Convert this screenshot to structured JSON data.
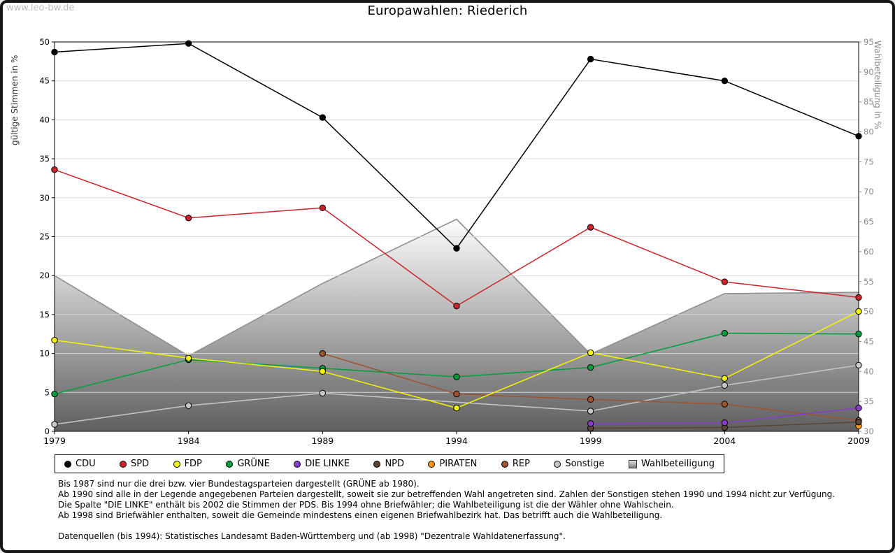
{
  "watermark": "www.leo-bw.de",
  "chart_data": {
    "type": "line",
    "title": "Europawahlen: Riederich",
    "x": [
      "1979",
      "1984",
      "1989",
      "1994",
      "1999",
      "2004",
      "2009"
    ],
    "ylabel_left": "gültige Stimmen in %",
    "ylabel_right": "Wahlbeteiligung in %",
    "ylim_left": [
      0,
      50
    ],
    "ylim_right": [
      30,
      95
    ],
    "yticks_left": [
      0,
      5,
      10,
      15,
      20,
      25,
      30,
      35,
      40,
      45,
      50
    ],
    "yticks_right": [
      30,
      35,
      40,
      45,
      50,
      55,
      60,
      65,
      70,
      75,
      80,
      85,
      90,
      95
    ],
    "grid": true,
    "legend_position": "bottom",
    "series": [
      {
        "name": "CDU",
        "color": "#000000",
        "values": [
          48.7,
          49.8,
          40.3,
          23.5,
          47.8,
          45.0,
          37.9
        ]
      },
      {
        "name": "SPD",
        "color": "#cc2229",
        "values": [
          33.6,
          27.4,
          28.7,
          16.1,
          26.2,
          19.2,
          17.2
        ]
      },
      {
        "name": "FDP",
        "color": "#f6f600",
        "values": [
          11.7,
          9.4,
          7.7,
          3.0,
          10.1,
          6.8,
          15.4
        ]
      },
      {
        "name": "GRÜNE",
        "color": "#009e3c",
        "values": [
          4.8,
          9.2,
          8.1,
          7.0,
          8.2,
          12.6,
          12.5
        ]
      },
      {
        "name": "DIE LINKE",
        "color": "#8b3bc9",
        "values": [
          null,
          null,
          null,
          null,
          1.0,
          1.1,
          3.0
        ]
      },
      {
        "name": "NPD",
        "color": "#5a4634",
        "values": [
          null,
          null,
          null,
          null,
          0.4,
          0.5,
          1.2
        ]
      },
      {
        "name": "PIRATEN",
        "color": "#ff9913",
        "values": [
          null,
          null,
          null,
          null,
          null,
          null,
          0.7
        ]
      },
      {
        "name": "REP",
        "color": "#a0522d",
        "values": [
          null,
          null,
          10.0,
          4.8,
          4.1,
          3.5,
          1.4
        ]
      },
      {
        "name": "Sonstige",
        "color": "#c8c8c8",
        "values": [
          0.9,
          3.3,
          4.9,
          null,
          2.6,
          5.9,
          8.5
        ]
      }
    ],
    "area_series": {
      "name": "Wahlbeteiligung",
      "axis": "right",
      "stroke": "#8f8f8f",
      "fill_gradient": [
        "#fdfdfd",
        "#5f5f5f"
      ],
      "values": [
        56.0,
        42.6,
        54.7,
        65.4,
        42.9,
        53.0,
        53.2
      ]
    }
  },
  "footnotes": {
    "lines": [
      "Bis 1987 sind nur die drei bzw. vier Bundestagsparteien dargestellt (GRÜNE ab 1980).",
      "Ab 1990 sind alle in der Legende angegebenen Parteien dargestellt, soweit sie zur betreffenden Wahl angetreten sind. Zahlen der Sonstigen stehen 1990 und 1994 nicht zur Verfügung.",
      "Die Spalte \"DIE LINKE\" enthält bis 2002 die Stimmen der PDS. Bis 1994 ohne Briefwähler; die Wahlbeteiligung ist die der Wähler ohne Wahlschein.",
      "Ab 1998 sind Briefwähler enthalten, soweit die Gemeinde mindestens einen eigenen Briefwahlbezirk hat. Das betrifft auch die Wahlbeteiligung.",
      "",
      "Datenquellen (bis 1994): Statistisches Landesamt Baden-Württemberg und (ab 1998) \"Dezentrale Wahldatenerfassung\"."
    ]
  }
}
